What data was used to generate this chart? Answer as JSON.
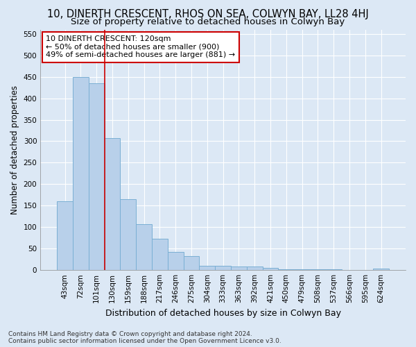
{
  "title": "10, DINERTH CRESCENT, RHOS ON SEA, COLWYN BAY, LL28 4HJ",
  "subtitle": "Size of property relative to detached houses in Colwyn Bay",
  "xlabel": "Distribution of detached houses by size in Colwyn Bay",
  "ylabel": "Number of detached properties",
  "footer_line1": "Contains HM Land Registry data © Crown copyright and database right 2024.",
  "footer_line2": "Contains public sector information licensed under the Open Government Licence v3.0.",
  "categories": [
    "43sqm",
    "72sqm",
    "101sqm",
    "130sqm",
    "159sqm",
    "188sqm",
    "217sqm",
    "246sqm",
    "275sqm",
    "304sqm",
    "333sqm",
    "363sqm",
    "392sqm",
    "421sqm",
    "450sqm",
    "479sqm",
    "508sqm",
    "537sqm",
    "566sqm",
    "595sqm",
    "624sqm"
  ],
  "values": [
    160,
    450,
    435,
    308,
    165,
    107,
    73,
    43,
    33,
    10,
    10,
    8,
    8,
    5,
    2,
    2,
    2,
    2,
    1,
    1,
    3
  ],
  "bar_color": "#b8d0ea",
  "bar_edge_color": "#7aafd4",
  "vline_x": 2.5,
  "vline_color": "#cc0000",
  "annotation_text_line1": "10 DINERTH CRESCENT: 120sqm",
  "annotation_text_line2": "← 50% of detached houses are smaller (900)",
  "annotation_text_line3": "49% of semi-detached houses are larger (881) →",
  "ylim": [
    0,
    560
  ],
  "yticks": [
    0,
    50,
    100,
    150,
    200,
    250,
    300,
    350,
    400,
    450,
    500,
    550
  ],
  "background_color": "#dce8f5",
  "plot_bg_color": "#dce8f5",
  "grid_color": "#ffffff",
  "title_fontsize": 10.5,
  "subtitle_fontsize": 9.5,
  "ylabel_fontsize": 8.5,
  "xlabel_fontsize": 9,
  "tick_fontsize": 7.5,
  "annot_fontsize": 8,
  "footer_fontsize": 6.5
}
